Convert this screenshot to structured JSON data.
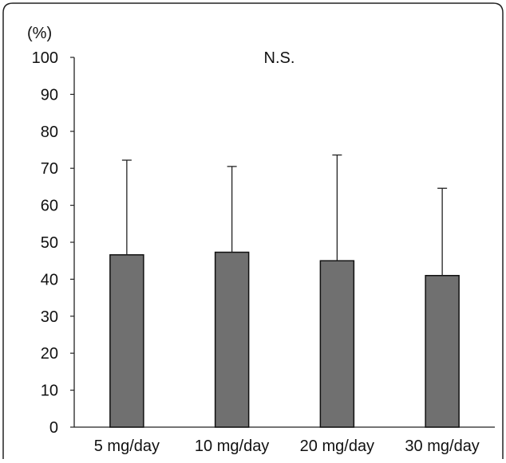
{
  "chart_data": {
    "type": "bar",
    "y_unit_label": "(%)",
    "annotation": "N.S.",
    "categories": [
      "5 mg/day",
      "10 mg/day",
      "20 mg/day",
      "30 mg/day"
    ],
    "values": [
      46.6,
      47.3,
      45.0,
      41.0
    ],
    "error_upper": [
      72.2,
      70.5,
      73.6,
      64.6
    ],
    "ylim": [
      0,
      100
    ],
    "yticks": [
      0,
      10,
      20,
      30,
      40,
      50,
      60,
      70,
      80,
      90,
      100
    ],
    "ytick_labels": [
      "0",
      "10",
      "20",
      "30",
      "40",
      "50",
      "60",
      "70",
      "80",
      "90",
      "100"
    ],
    "grid": false,
    "bar_color": "#707070",
    "bar_edge_color": "#111111"
  }
}
